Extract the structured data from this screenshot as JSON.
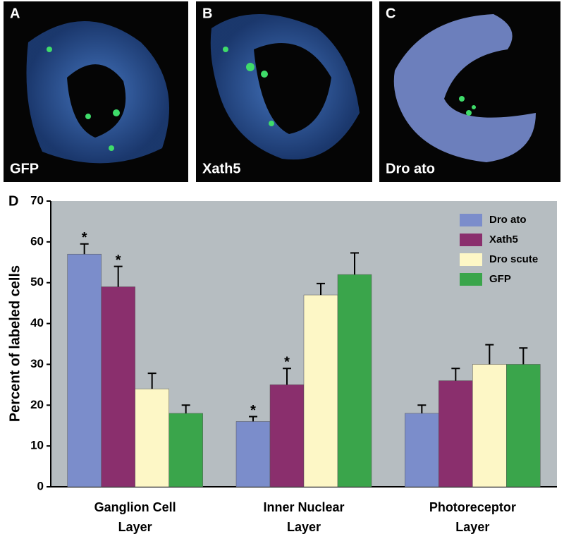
{
  "panels": [
    {
      "letter": "A",
      "label": "GFP"
    },
    {
      "letter": "B",
      "label": "Xath5"
    },
    {
      "letter": "C",
      "label": "Dro ato"
    }
  ],
  "chart_data": {
    "type": "bar",
    "panel_label": "D",
    "y_label": "Percent of labeled cells",
    "categories": [
      "Ganglion Cell Layer",
      "Inner Nuclear Layer",
      "Photoreceptor Layer"
    ],
    "series": [
      {
        "name": "Dro ato",
        "color": "#7b8dcb",
        "values": [
          57,
          16,
          18
        ],
        "errors": [
          2.5,
          1.2,
          2
        ],
        "value_annotations": [
          "*",
          "*",
          null
        ]
      },
      {
        "name": "Xath5",
        "color": "#8a2f6d",
        "values": [
          49,
          25,
          26
        ],
        "errors": [
          5,
          4,
          3
        ],
        "value_annotations": [
          "*",
          "*",
          null
        ]
      },
      {
        "name": "Dro scute",
        "color": "#fdf7c6",
        "values": [
          24,
          47,
          30
        ],
        "errors": [
          3.8,
          2.8,
          4.8
        ],
        "value_annotations": [
          null,
          null,
          null
        ]
      },
      {
        "name": "GFP",
        "color": "#3aa54b",
        "values": [
          18,
          52,
          30
        ],
        "errors": [
          2,
          5.3,
          4
        ],
        "value_annotations": [
          null,
          null,
          null
        ]
      }
    ],
    "ylim": [
      0,
      70
    ],
    "yticks": [
      0,
      10,
      20,
      30,
      40,
      50,
      60,
      70
    ],
    "legend": "top-right",
    "grid": false
  }
}
